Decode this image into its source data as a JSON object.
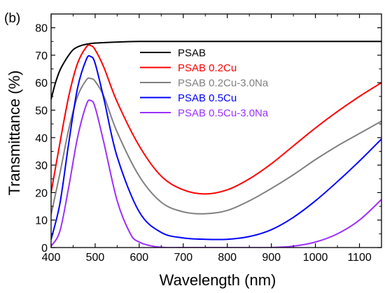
{
  "chart_data": {
    "type": "line",
    "panel_label": "(b)",
    "xlabel": "Wavelength (nm)",
    "ylabel": "Transmittance (%)",
    "xlim": [
      400,
      1150
    ],
    "ylim": [
      0,
      85
    ],
    "xticks": [
      400,
      500,
      600,
      700,
      800,
      900,
      1000,
      1100
    ],
    "yticks": [
      0,
      10,
      20,
      30,
      40,
      50,
      60,
      70,
      80
    ],
    "legend_position": "top-right",
    "series": [
      {
        "name": "PSAB",
        "color": "#000000",
        "x": [
          400,
          410,
          420,
          430,
          440,
          450,
          460,
          470,
          480,
          500,
          550,
          600,
          700,
          800,
          900,
          1000,
          1100,
          1150
        ],
        "y": [
          54,
          60,
          64.5,
          67.5,
          70,
          72,
          73,
          73.6,
          74,
          74.4,
          74.8,
          75,
          75,
          75,
          75,
          75,
          75,
          75
        ]
      },
      {
        "name": "PSAB 0.2Cu",
        "color": "#ff0000",
        "x": [
          400,
          420,
          440,
          460,
          480,
          490,
          500,
          520,
          550,
          600,
          650,
          700,
          750,
          800,
          850,
          900,
          950,
          1000,
          1050,
          1100,
          1150
        ],
        "y": [
          20,
          38,
          55,
          67,
          73,
          73.5,
          72,
          65.5,
          53,
          37,
          26,
          21,
          19.5,
          21,
          25,
          30.5,
          37,
          43.5,
          49.5,
          55,
          60
        ]
      },
      {
        "name": "PSAB 0.2Cu-3.0Na",
        "color": "#808080",
        "x": [
          400,
          420,
          440,
          460,
          480,
          490,
          500,
          520,
          550,
          600,
          650,
          700,
          750,
          800,
          850,
          900,
          950,
          1000,
          1050,
          1100,
          1150
        ],
        "y": [
          12,
          27,
          43,
          55,
          61,
          61.5,
          60.5,
          55,
          42,
          26,
          16.5,
          13,
          12.3,
          13.5,
          17,
          21.5,
          26.5,
          32,
          37,
          41.5,
          46
        ]
      },
      {
        "name": "PSAB 0.5Cu",
        "color": "#0000ff",
        "x": [
          400,
          420,
          440,
          460,
          480,
          490,
          500,
          520,
          550,
          600,
          650,
          700,
          750,
          800,
          850,
          900,
          950,
          1000,
          1050,
          1100,
          1150
        ],
        "y": [
          3,
          16,
          38,
          58,
          68.5,
          69.5,
          67,
          54,
          33,
          13,
          5.5,
          3.5,
          3,
          3,
          4,
          6.5,
          11,
          17,
          24,
          31.5,
          39.5
        ]
      },
      {
        "name": "PSAB 0.5Cu-3.0Na",
        "color": "#9b30ff",
        "x": [
          400,
          420,
          440,
          460,
          480,
          490,
          500,
          520,
          550,
          580,
          600,
          630,
          660,
          700,
          800,
          900,
          950,
          1000,
          1050,
          1100,
          1150
        ],
        "y": [
          0.5,
          6,
          22,
          40,
          52,
          53.5,
          51,
          38,
          17,
          5,
          2,
          0.5,
          0,
          0,
          0,
          0,
          0.5,
          2,
          5,
          10,
          17.5
        ]
      }
    ]
  }
}
